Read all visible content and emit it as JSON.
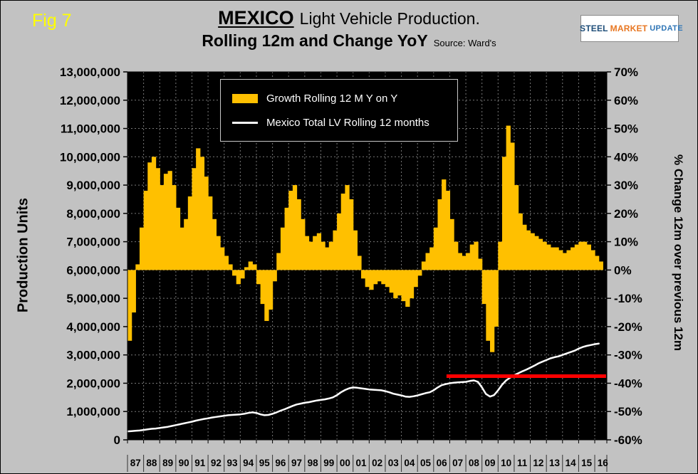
{
  "fig_label": "Fig 7",
  "title": {
    "country": "MEXICO",
    "main": "Light Vehicle Production.",
    "subtitle": "Rolling 12m and Change YoY",
    "source": "Source: Ward's"
  },
  "logo": {
    "steel": "STEEL",
    "market": "MARKET",
    "update": "UPDATE"
  },
  "left_axis": {
    "title": "Production Units",
    "ticks": [
      "13,000,000",
      "12,000,000",
      "11,000,000",
      "10,000,000",
      "9,000,000",
      "8,000,000",
      "7,000,000",
      "6,000,000",
      "5,000,000",
      "4,000,000",
      "3,000,000",
      "2,000,000",
      "1,000,000",
      "0"
    ]
  },
  "right_axis": {
    "title": "% Change 12m over previous 12m",
    "ticks": [
      "70%",
      "60%",
      "50%",
      "40%",
      "30%",
      "20%",
      "10%",
      "0%",
      "-10%",
      "-20%",
      "-30%",
      "-40%",
      "-50%",
      "-60%"
    ]
  },
  "x_axis": {
    "labels": [
      "87",
      "88",
      "89",
      "90",
      "91",
      "92",
      "93",
      "94",
      "95",
      "96",
      "97",
      "98",
      "99",
      "00",
      "01",
      "02",
      "03",
      "04",
      "05",
      "06",
      "07",
      "08",
      "09",
      "10",
      "11",
      "12",
      "13",
      "14",
      "15",
      "16"
    ]
  },
  "legend": [
    {
      "label": "Growth Rolling 12 M Y on Y",
      "color": "#FFC000",
      "type": "bar"
    },
    {
      "label": "Mexico Total LV Rolling 12 months",
      "color": "#FFFFFF",
      "type": "line"
    }
  ],
  "chart_data": {
    "type": "combo",
    "title": "MEXICO Light Vehicle Production. Rolling 12m and Change YoY",
    "source": "Ward's",
    "x_start": 1987.0,
    "x_step": 0.25,
    "x_range": [
      1987.0,
      2016.75
    ],
    "left_axis_label": "Production Units",
    "right_axis_label": "% Change 12m over previous 12m",
    "left_axis_range": [
      0,
      13000000
    ],
    "right_axis_range": [
      -60,
      70
    ],
    "grid": true,
    "plot_background": "#000000",
    "legend_position": "top-center-inside",
    "series": [
      {
        "name": "Growth Rolling 12 M Y on Y",
        "type": "bar",
        "axis": "right",
        "unit": "percent_yoy",
        "color": "#FFC000",
        "values": [
          -25,
          -15,
          2,
          15,
          28,
          38,
          40,
          36,
          30,
          34,
          35,
          30,
          22,
          15,
          18,
          26,
          36,
          43,
          40,
          33,
          26,
          18,
          12,
          8,
          5,
          2,
          -2,
          -5,
          -3,
          1,
          3,
          2,
          -5,
          -12,
          -18,
          -14,
          -4,
          6,
          15,
          22,
          28,
          30,
          25,
          18,
          12,
          10,
          12,
          13,
          10,
          8,
          10,
          14,
          20,
          27,
          30,
          25,
          14,
          5,
          -3,
          -6,
          -7,
          -5,
          -4,
          -5,
          -6,
          -8,
          -10,
          -9,
          -11,
          -13,
          -10,
          -6,
          -2,
          3,
          6,
          8,
          15,
          25,
          32,
          28,
          18,
          10,
          6,
          5,
          6,
          9,
          10,
          4,
          -12,
          -25,
          -29,
          -20,
          10,
          40,
          51,
          45,
          30,
          20,
          16,
          14,
          13,
          12,
          11,
          10,
          9,
          8,
          8,
          7,
          6,
          7,
          8,
          9,
          10,
          10,
          9,
          7,
          5,
          3
        ]
      },
      {
        "name": "Mexico Total LV Rolling 12 months",
        "type": "line",
        "axis": "left",
        "unit": "million_units",
        "color": "#FFFFFF",
        "values": [
          0.3,
          0.31,
          0.32,
          0.33,
          0.35,
          0.37,
          0.39,
          0.4,
          0.42,
          0.44,
          0.46,
          0.49,
          0.52,
          0.55,
          0.58,
          0.61,
          0.64,
          0.68,
          0.71,
          0.74,
          0.76,
          0.79,
          0.81,
          0.83,
          0.85,
          0.87,
          0.88,
          0.89,
          0.9,
          0.92,
          0.95,
          0.97,
          0.95,
          0.9,
          0.87,
          0.88,
          0.92,
          0.97,
          1.03,
          1.08,
          1.14,
          1.2,
          1.25,
          1.28,
          1.31,
          1.33,
          1.36,
          1.39,
          1.41,
          1.43,
          1.46,
          1.5,
          1.58,
          1.68,
          1.76,
          1.82,
          1.85,
          1.84,
          1.82,
          1.8,
          1.78,
          1.77,
          1.76,
          1.75,
          1.72,
          1.68,
          1.63,
          1.6,
          1.57,
          1.53,
          1.52,
          1.54,
          1.57,
          1.61,
          1.65,
          1.68,
          1.75,
          1.85,
          1.93,
          1.97,
          2.0,
          2.02,
          2.03,
          2.04,
          2.05,
          2.08,
          2.1,
          2.05,
          1.85,
          1.62,
          1.53,
          1.58,
          1.75,
          1.95,
          2.1,
          2.2,
          2.28,
          2.35,
          2.42,
          2.48,
          2.55,
          2.62,
          2.7,
          2.76,
          2.82,
          2.88,
          2.92,
          2.95,
          3.0,
          3.05,
          3.1,
          3.15,
          3.22,
          3.28,
          3.32,
          3.35,
          3.38,
          3.4
        ]
      },
      {
        "name": "Reference level line",
        "type": "hline",
        "axis": "left",
        "unit": "million_units",
        "color": "#FF0000",
        "value": 2.25,
        "x_from": 2006.8,
        "x_to": 2016.7
      }
    ]
  }
}
